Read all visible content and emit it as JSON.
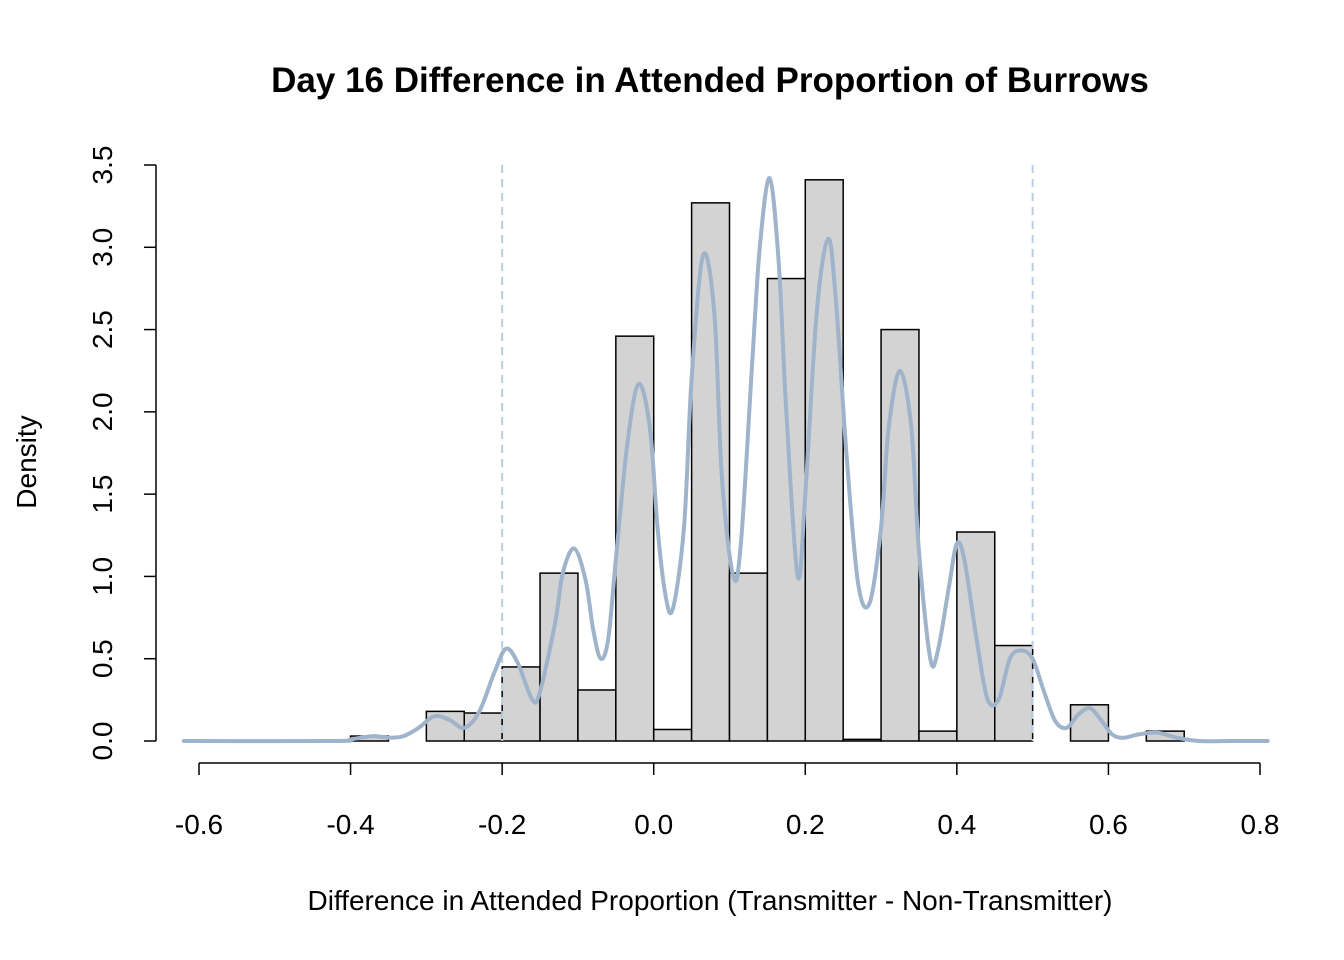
{
  "chart_data": {
    "type": "bar",
    "title": "Day 16 Difference in Attended Proportion of Burrows",
    "xlabel": "Difference in Attended Proportion (Transmitter - Non-Transmitter)",
    "ylabel": "Density",
    "xlim": [
      -0.6,
      0.8
    ],
    "ylim": [
      0,
      3.5
    ],
    "x_ticks": [
      "-0.6",
      "-0.4",
      "-0.2",
      "0.0",
      "0.2",
      "0.4",
      "0.6",
      "0.8"
    ],
    "y_ticks": [
      "0.0",
      "0.5",
      "1.0",
      "1.5",
      "2.0",
      "2.5",
      "3.0",
      "3.5"
    ],
    "bin_width": 0.05,
    "bins": [
      {
        "start": -0.4,
        "end": -0.35,
        "density": 0.03
      },
      {
        "start": -0.35,
        "end": -0.3,
        "density": 0.0
      },
      {
        "start": -0.3,
        "end": -0.25,
        "density": 0.18
      },
      {
        "start": -0.25,
        "end": -0.2,
        "density": 0.17
      },
      {
        "start": -0.2,
        "end": -0.15,
        "density": 0.45
      },
      {
        "start": -0.15,
        "end": -0.1,
        "density": 1.02
      },
      {
        "start": -0.1,
        "end": -0.05,
        "density": 0.31
      },
      {
        "start": -0.05,
        "end": 0.0,
        "density": 2.46
      },
      {
        "start": 0.0,
        "end": 0.05,
        "density": 0.07
      },
      {
        "start": 0.05,
        "end": 0.1,
        "density": 3.27
      },
      {
        "start": 0.1,
        "end": 0.15,
        "density": 1.02
      },
      {
        "start": 0.15,
        "end": 0.2,
        "density": 2.81
      },
      {
        "start": 0.2,
        "end": 0.25,
        "density": 3.41
      },
      {
        "start": 0.25,
        "end": 0.3,
        "density": 0.01
      },
      {
        "start": 0.3,
        "end": 0.35,
        "density": 2.5
      },
      {
        "start": 0.35,
        "end": 0.4,
        "density": 0.06
      },
      {
        "start": 0.4,
        "end": 0.45,
        "density": 1.27
      },
      {
        "start": 0.45,
        "end": 0.5,
        "density": 0.58
      },
      {
        "start": 0.5,
        "end": 0.55,
        "density": 0.0
      },
      {
        "start": 0.55,
        "end": 0.6,
        "density": 0.22
      },
      {
        "start": 0.6,
        "end": 0.65,
        "density": 0.0
      },
      {
        "start": 0.65,
        "end": 0.7,
        "density": 0.06
      }
    ],
    "reference_lines": [
      -0.2,
      0.5
    ],
    "density_curve": {
      "x": [
        -0.62,
        -0.42,
        -0.4,
        -0.37,
        -0.35,
        -0.33,
        -0.31,
        -0.29,
        -0.27,
        -0.25,
        -0.23,
        -0.21,
        -0.195,
        -0.18,
        -0.16,
        -0.15,
        -0.13,
        -0.12,
        -0.105,
        -0.09,
        -0.08,
        -0.07,
        -0.06,
        -0.05,
        -0.035,
        -0.02,
        -0.005,
        0.005,
        0.015,
        0.025,
        0.04,
        0.05,
        0.065,
        0.08,
        0.09,
        0.105,
        0.115,
        0.13,
        0.14,
        0.153,
        0.165,
        0.175,
        0.19,
        0.2,
        0.215,
        0.23,
        0.24,
        0.255,
        0.27,
        0.285,
        0.3,
        0.31,
        0.325,
        0.34,
        0.35,
        0.365,
        0.375,
        0.39,
        0.4,
        0.41,
        0.425,
        0.44,
        0.455,
        0.47,
        0.485,
        0.5,
        0.515,
        0.53,
        0.545,
        0.56,
        0.575,
        0.59,
        0.605,
        0.62,
        0.64,
        0.665,
        0.69,
        0.72,
        0.76,
        0.8,
        0.81
      ],
      "y": [
        0.0,
        0.0,
        0.01,
        0.03,
        0.02,
        0.03,
        0.08,
        0.15,
        0.13,
        0.08,
        0.18,
        0.42,
        0.56,
        0.48,
        0.25,
        0.3,
        0.72,
        1.02,
        1.17,
        0.98,
        0.68,
        0.5,
        0.62,
        1.1,
        1.8,
        2.17,
        1.9,
        1.3,
        0.9,
        0.8,
        1.3,
        2.2,
        2.95,
        2.6,
        1.6,
        1.0,
        1.2,
        2.3,
        3.0,
        3.42,
        2.9,
        2.0,
        1.0,
        1.5,
        2.6,
        3.05,
        2.7,
        1.7,
        0.95,
        0.84,
        1.3,
        1.9,
        2.25,
        1.9,
        1.15,
        0.5,
        0.55,
        0.95,
        1.2,
        1.1,
        0.65,
        0.26,
        0.25,
        0.5,
        0.55,
        0.5,
        0.3,
        0.12,
        0.08,
        0.16,
        0.2,
        0.13,
        0.04,
        0.02,
        0.04,
        0.05,
        0.02,
        0.0,
        0.0,
        0.0,
        0.0
      ]
    }
  }
}
